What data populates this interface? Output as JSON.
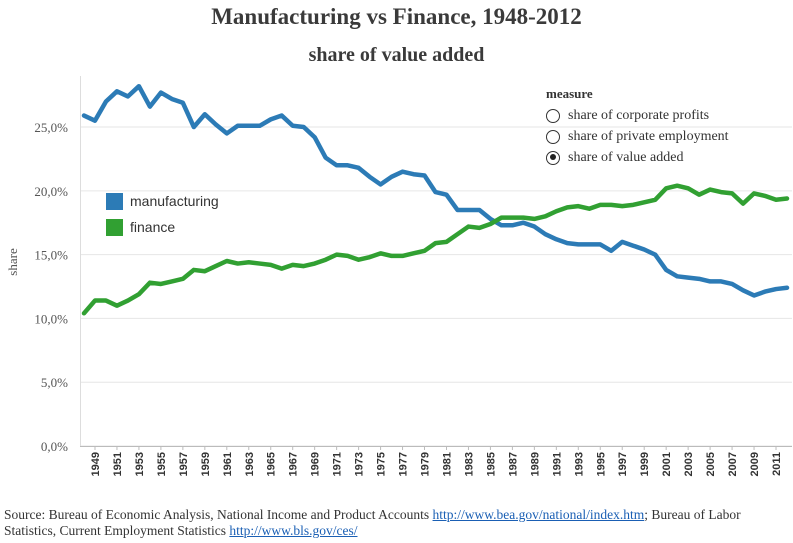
{
  "chart_data": {
    "type": "line",
    "title": "Manufacturing vs Finance, 1948-2012",
    "subtitle": "share of value added",
    "xlabel": "",
    "ylabel": "share",
    "ylim": [
      0,
      0.29
    ],
    "y_ticks": [
      "0,0%",
      "5,0%",
      "10,0%",
      "15,0%",
      "20,0%",
      "25,0%"
    ],
    "y_tick_values": [
      0,
      0.05,
      0.1,
      0.15,
      0.2,
      0.25
    ],
    "x": [
      1948,
      1949,
      1950,
      1951,
      1952,
      1953,
      1954,
      1955,
      1956,
      1957,
      1958,
      1959,
      1960,
      1961,
      1962,
      1963,
      1964,
      1965,
      1966,
      1967,
      1968,
      1969,
      1970,
      1971,
      1972,
      1973,
      1974,
      1975,
      1976,
      1977,
      1978,
      1979,
      1980,
      1981,
      1982,
      1983,
      1984,
      1985,
      1986,
      1987,
      1988,
      1989,
      1990,
      1991,
      1992,
      1993,
      1994,
      1995,
      1996,
      1997,
      1998,
      1999,
      2000,
      2001,
      2002,
      2003,
      2004,
      2005,
      2006,
      2007,
      2008,
      2009,
      2010,
      2011,
      2012
    ],
    "x_tick_labels": [
      "1949",
      "1951",
      "1953",
      "1955",
      "1957",
      "1959",
      "1961",
      "1963",
      "1965",
      "1967",
      "1969",
      "1971",
      "1973",
      "1975",
      "1977",
      "1979",
      "1981",
      "1983",
      "1985",
      "1987",
      "1989",
      "1991",
      "1993",
      "1995",
      "1997",
      "1999",
      "2001",
      "2003",
      "2005",
      "2007",
      "2009",
      "2011"
    ],
    "series": [
      {
        "name": "manufacturing",
        "color": "#2c7bb6",
        "values": [
          0.259,
          0.255,
          0.27,
          0.278,
          0.274,
          0.282,
          0.266,
          0.277,
          0.272,
          0.269,
          0.25,
          0.26,
          0.252,
          0.245,
          0.251,
          0.251,
          0.251,
          0.256,
          0.259,
          0.251,
          0.25,
          0.242,
          0.226,
          0.22,
          0.22,
          0.218,
          0.211,
          0.205,
          0.211,
          0.215,
          0.213,
          0.212,
          0.199,
          0.197,
          0.185,
          0.185,
          0.185,
          0.178,
          0.173,
          0.173,
          0.175,
          0.172,
          0.166,
          0.162,
          0.159,
          0.158,
          0.158,
          0.158,
          0.153,
          0.16,
          0.157,
          0.154,
          0.15,
          0.138,
          0.133,
          0.132,
          0.131,
          0.129,
          0.129,
          0.127,
          0.122,
          0.118,
          0.121,
          0.123,
          0.124
        ]
      },
      {
        "name": "finance",
        "color": "#31a032",
        "values": [
          0.104,
          0.114,
          0.114,
          0.11,
          0.114,
          0.119,
          0.128,
          0.127,
          0.129,
          0.131,
          0.138,
          0.137,
          0.141,
          0.145,
          0.143,
          0.144,
          0.143,
          0.142,
          0.139,
          0.142,
          0.141,
          0.143,
          0.146,
          0.15,
          0.149,
          0.146,
          0.148,
          0.151,
          0.149,
          0.149,
          0.151,
          0.153,
          0.159,
          0.16,
          0.166,
          0.172,
          0.171,
          0.174,
          0.179,
          0.179,
          0.179,
          0.178,
          0.18,
          0.184,
          0.187,
          0.188,
          0.186,
          0.189,
          0.189,
          0.188,
          0.189,
          0.191,
          0.193,
          0.202,
          0.204,
          0.202,
          0.197,
          0.201,
          0.199,
          0.198,
          0.19,
          0.198,
          0.196,
          0.193,
          0.194
        ]
      }
    ]
  },
  "legend": {
    "items": [
      {
        "label": "manufacturing",
        "color": "#2c7bb6"
      },
      {
        "label": "finance",
        "color": "#31a032"
      }
    ]
  },
  "measure": {
    "title": "measure",
    "options": [
      {
        "label": "share of corporate profits",
        "checked": false
      },
      {
        "label": "share of private employment",
        "checked": false
      },
      {
        "label": "share of value added",
        "checked": true
      }
    ]
  },
  "source": {
    "prefix": "Source: Bureau of Economic Analysis, National Income and Product Accounts ",
    "link1": "http://www.bea.gov/national/index.htm",
    "middle": "; Bureau of Labor Statistics, Current Employment Statistics ",
    "link2": "http://www.bls.gov/ces/"
  }
}
